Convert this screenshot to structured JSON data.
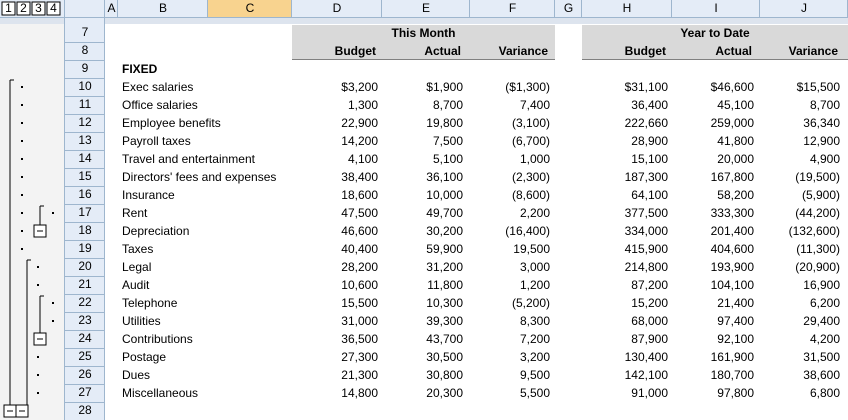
{
  "outline_levels": [
    "1",
    "2",
    "3",
    "4"
  ],
  "columns": [
    "A",
    "B",
    "C",
    "D",
    "E",
    "F",
    "G",
    "H",
    "I",
    "J"
  ],
  "row_numbers": [
    "7",
    "8",
    "9",
    "10",
    "11",
    "12",
    "13",
    "14",
    "15",
    "16",
    "17",
    "18",
    "19",
    "20",
    "21",
    "22",
    "23",
    "24",
    "25",
    "26",
    "27",
    "28"
  ],
  "groups": [
    "This Month",
    "Year to Date"
  ],
  "subheaders": [
    "Budget",
    "Actual",
    "Variance",
    "Budget",
    "Actual",
    "Variance"
  ],
  "section": "FIXED",
  "negative_color": "#ff0000",
  "rows": [
    [
      "Exec salaries",
      "$3,200",
      "$1,900",
      "($1,300)",
      "$31,100",
      "$46,600",
      "$15,500"
    ],
    [
      "Office salaries",
      "1,300",
      "8,700",
      "7,400",
      "36,400",
      "45,100",
      "8,700"
    ],
    [
      "Employee benefits",
      "22,900",
      "19,800",
      "(3,100)",
      "222,660",
      "259,000",
      "36,340"
    ],
    [
      "Payroll taxes",
      "14,200",
      "7,500",
      "(6,700)",
      "28,900",
      "41,800",
      "12,900"
    ],
    [
      "Travel and entertainment",
      "4,100",
      "5,100",
      "1,000",
      "15,100",
      "20,000",
      "4,900"
    ],
    [
      "Directors' fees and expenses",
      "38,400",
      "36,100",
      "(2,300)",
      "187,300",
      "167,800",
      "(19,500)"
    ],
    [
      "Insurance",
      "18,600",
      "10,000",
      "(8,600)",
      "64,100",
      "58,200",
      "(5,900)"
    ],
    [
      "Rent",
      "47,500",
      "49,700",
      "2,200",
      "377,500",
      "333,300",
      "(44,200)"
    ],
    [
      "Depreciation",
      "46,600",
      "30,200",
      "(16,400)",
      "334,000",
      "201,400",
      "(132,600)"
    ],
    [
      "Taxes",
      "40,400",
      "59,900",
      "19,500",
      "415,900",
      "404,600",
      "(11,300)"
    ],
    [
      "Legal",
      "28,200",
      "31,200",
      "3,000",
      "214,800",
      "193,900",
      "(20,900)"
    ],
    [
      "Audit",
      "10,600",
      "11,800",
      "1,200",
      "87,200",
      "104,100",
      "16,900"
    ],
    [
      "Telephone",
      "15,500",
      "10,300",
      "(5,200)",
      "15,200",
      "21,400",
      "6,200"
    ],
    [
      "Utilities",
      "31,000",
      "39,300",
      "8,300",
      "68,000",
      "97,400",
      "29,400"
    ],
    [
      "Contributions",
      "36,500",
      "43,700",
      "7,200",
      "87,900",
      "92,100",
      "4,200"
    ],
    [
      "Postage",
      "27,300",
      "30,500",
      "3,200",
      "130,400",
      "161,900",
      "31,500"
    ],
    [
      "Dues",
      "21,300",
      "30,800",
      "9,500",
      "142,100",
      "180,700",
      "38,600"
    ],
    [
      "Miscellaneous",
      "14,800",
      "20,300",
      "5,500",
      "91,000",
      "97,800",
      "6,800"
    ]
  ]
}
